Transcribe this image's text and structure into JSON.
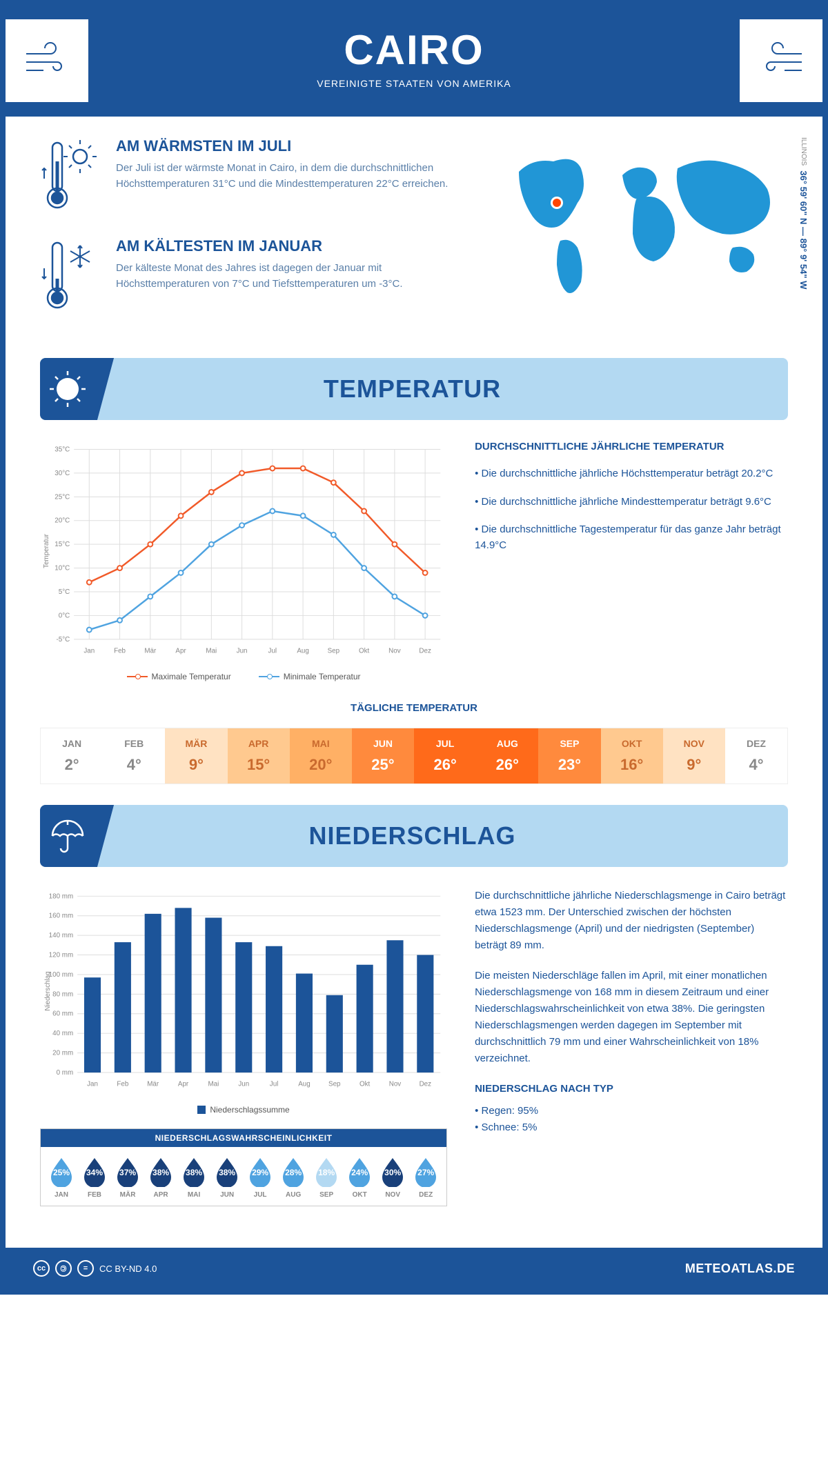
{
  "header": {
    "city": "CAIRO",
    "country": "VEREINIGTE STAATEN VON AMERIKA"
  },
  "coords": {
    "lat": "36° 59' 60\" N",
    "lon": "89° 9' 54\" W",
    "state": "ILLINOIS"
  },
  "intro": {
    "warm": {
      "title": "AM WÄRMSTEN IM JULI",
      "text": "Der Juli ist der wärmste Monat in Cairo, in dem die durchschnittlichen Höchsttemperaturen 31°C und die Mindesttemperaturen 22°C erreichen."
    },
    "cold": {
      "title": "AM KÄLTESTEN IM JANUAR",
      "text": "Der kälteste Monat des Jahres ist dagegen der Januar mit Höchsttemperaturen von 7°C und Tiefsttemperaturen um -3°C."
    }
  },
  "sections": {
    "temp": "TEMPERATUR",
    "precip": "NIEDERSCHLAG"
  },
  "months": [
    "Jan",
    "Feb",
    "Mär",
    "Apr",
    "Mai",
    "Jun",
    "Jul",
    "Aug",
    "Sep",
    "Okt",
    "Nov",
    "Dez"
  ],
  "months_upper": [
    "JAN",
    "FEB",
    "MÄR",
    "APR",
    "MAI",
    "JUN",
    "JUL",
    "AUG",
    "SEP",
    "OKT",
    "NOV",
    "DEZ"
  ],
  "temp_chart": {
    "type": "line",
    "y_label": "Temperatur",
    "ylim": [
      -5,
      35
    ],
    "ytick_step": 5,
    "y_suffix": "°C",
    "max_series": {
      "label": "Maximale Temperatur",
      "color": "#f15a29",
      "values": [
        7,
        10,
        15,
        21,
        26,
        30,
        31,
        31,
        28,
        22,
        15,
        9
      ]
    },
    "min_series": {
      "label": "Minimale Temperatur",
      "color": "#4fa3e0",
      "values": [
        -3,
        -1,
        4,
        9,
        15,
        19,
        22,
        21,
        17,
        10,
        4,
        0
      ]
    },
    "grid_color": "#dddddd",
    "background": "#ffffff"
  },
  "temp_info": {
    "title": "DURCHSCHNITTLICHE JÄHRLICHE TEMPERATUR",
    "b1": "• Die durchschnittliche jährliche Höchsttemperatur beträgt 20.2°C",
    "b2": "• Die durchschnittliche jährliche Mindesttemperatur beträgt 9.6°C",
    "b3": "• Die durchschnittliche Tagestemperatur für das ganze Jahr beträgt 14.9°C"
  },
  "daily": {
    "title": "TÄGLICHE TEMPERATUR",
    "values": [
      2,
      4,
      9,
      15,
      20,
      25,
      26,
      26,
      23,
      16,
      9,
      4
    ],
    "bg_colors": [
      "#ffffff",
      "#ffffff",
      "#ffe2c2",
      "#ffc98f",
      "#ffb065",
      "#ff8a3d",
      "#ff6a1a",
      "#ff6a1a",
      "#ff8a3d",
      "#ffc98f",
      "#ffe2c2",
      "#ffffff"
    ],
    "text_colors": [
      "#888888",
      "#888888",
      "#c96a2e",
      "#c96a2e",
      "#c96a2e",
      "#ffffff",
      "#ffffff",
      "#ffffff",
      "#ffffff",
      "#c96a2e",
      "#c96a2e",
      "#888888"
    ]
  },
  "precip_chart": {
    "type": "bar",
    "y_label": "Niederschlag",
    "ylim": [
      0,
      180
    ],
    "ytick_step": 20,
    "y_suffix": " mm",
    "bar_color": "#1c5499",
    "legend": "Niederschlagssumme",
    "values": [
      97,
      133,
      162,
      168,
      158,
      133,
      129,
      101,
      79,
      110,
      135,
      120
    ]
  },
  "precip_text": {
    "p1": "Die durchschnittliche jährliche Niederschlagsmenge in Cairo beträgt etwa 1523 mm. Der Unterschied zwischen der höchsten Niederschlagsmenge (April) und der niedrigsten (September) beträgt 89 mm.",
    "p2": "Die meisten Niederschläge fallen im April, mit einer monatlichen Niederschlagsmenge von 168 mm in diesem Zeitraum und einer Niederschlagswahrscheinlichkeit von etwa 38%. Die geringsten Niederschlagsmengen werden dagegen im September mit durchschnittlich 79 mm und einer Wahrscheinlichkeit von 18% verzeichnet.",
    "type_title": "NIEDERSCHLAG NACH TYP",
    "type_rain": "• Regen: 95%",
    "type_snow": "• Schnee: 5%"
  },
  "probability": {
    "title": "NIEDERSCHLAGSWAHRSCHEINLICHKEIT",
    "values": [
      25,
      34,
      37,
      38,
      38,
      38,
      29,
      28,
      18,
      24,
      30,
      27
    ],
    "colors": [
      "#4fa3e0",
      "#19407a",
      "#19407a",
      "#19407a",
      "#19407a",
      "#19407a",
      "#4fa3e0",
      "#4fa3e0",
      "#b3d9f2",
      "#4fa3e0",
      "#19407a",
      "#4fa3e0"
    ]
  },
  "footer": {
    "license": "CC BY-ND 4.0",
    "brand": "METEOATLAS.DE"
  }
}
